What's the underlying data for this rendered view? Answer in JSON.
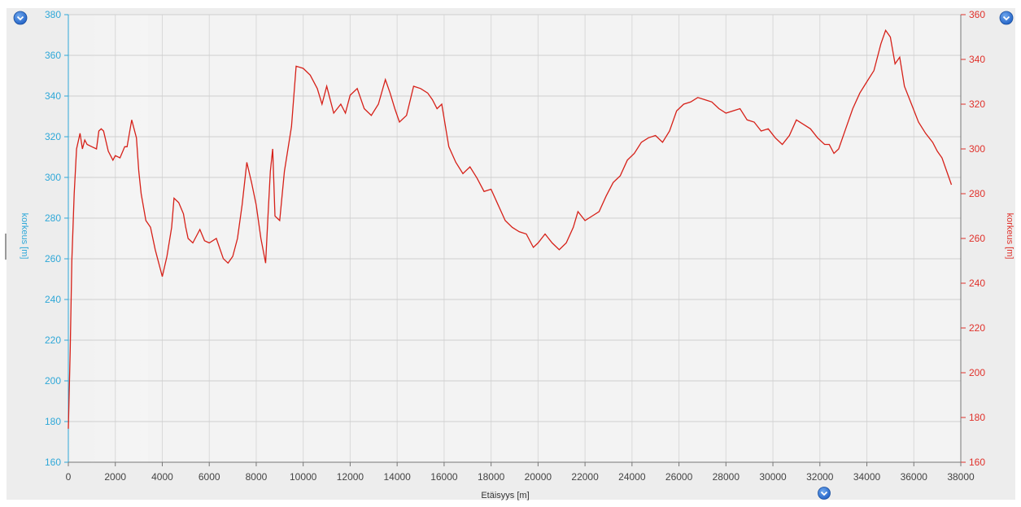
{
  "colors": {
    "left_axis": "#2fa8d8",
    "right_axis": "#e0312b",
    "series": "#d62018",
    "grid": "#d9d9d9",
    "plot_bg": "#f4f4f4",
    "panel_bg": "#ececec",
    "control": "#2a6fd0"
  },
  "controls": {
    "left_icon": "chevron-down-icon",
    "right_icon": "chevron-down-icon",
    "bottom_icon": "chevron-down-icon"
  },
  "chart_data": {
    "type": "line",
    "title": "",
    "xlabel": "Etäisyys [m]",
    "ylabel_left": "korkeus [m]",
    "ylabel_right": "korkeus [m]",
    "xlim": [
      0,
      38000
    ],
    "ylim": [
      160,
      380
    ],
    "ylim_right": [
      160,
      360
    ],
    "x_ticks": [
      "0",
      "2000",
      "4000",
      "6000",
      "8000",
      "10000",
      "12000",
      "14000",
      "16000",
      "18000",
      "20000",
      "22000",
      "24000",
      "26000",
      "28000",
      "30000",
      "32000",
      "34000",
      "36000",
      "38000"
    ],
    "y_ticks_left": [
      "160",
      "180",
      "200",
      "220",
      "240",
      "260",
      "280",
      "300",
      "320",
      "340",
      "360",
      "380"
    ],
    "y_ticks_right": [
      "160",
      "180",
      "200",
      "220",
      "240",
      "260",
      "280",
      "300",
      "320",
      "340",
      "360"
    ],
    "grid": true,
    "legend": "none",
    "series": [
      {
        "axis": "right",
        "x": [
          0,
          80,
          150,
          250,
          350,
          500,
          600,
          700,
          800,
          1000,
          1200,
          1300,
          1400,
          1500,
          1700,
          1900,
          2000,
          2200,
          2400,
          2500,
          2700,
          2900,
          3000,
          3100,
          3300,
          3500,
          3700,
          4000,
          4200,
          4400,
          4500,
          4700,
          4900,
          5000,
          5100,
          5300,
          5600,
          5800,
          6000,
          6300,
          6600,
          6800,
          7000,
          7200,
          7400,
          7600,
          7800,
          8000,
          8200,
          8400,
          8500,
          8600,
          8700,
          8800,
          9000,
          9200,
          9500,
          9700,
          10000,
          10300,
          10600,
          10800,
          11000,
          11300,
          11600,
          11800,
          12000,
          12300,
          12600,
          12900,
          13200,
          13500,
          13700,
          13900,
          14100,
          14400,
          14700,
          15000,
          15300,
          15500,
          15700,
          15900,
          16200,
          16500,
          16800,
          17100,
          17400,
          17700,
          18000,
          18300,
          18600,
          18900,
          19200,
          19500,
          19800,
          20000,
          20300,
          20600,
          20900,
          21200,
          21500,
          21700,
          22000,
          22300,
          22600,
          22900,
          23200,
          23500,
          23800,
          24100,
          24400,
          24700,
          25000,
          25300,
          25600,
          25900,
          26200,
          26500,
          26800,
          27100,
          27400,
          27700,
          28000,
          28300,
          28600,
          28900,
          29200,
          29500,
          29800,
          30100,
          30400,
          30700,
          31000,
          31300,
          31600,
          31900,
          32200,
          32400,
          32600,
          32800,
          33100,
          33400,
          33700,
          34000,
          34300,
          34600,
          34800,
          35000,
          35200,
          35400,
          35600,
          35900,
          36200,
          36500,
          36800,
          37000,
          37200,
          37400,
          37600
        ],
        "y": [
          175,
          210,
          250,
          280,
          300,
          307,
          300,
          304,
          302,
          301,
          300,
          308,
          309,
          308,
          299,
          295,
          297,
          296,
          301,
          301,
          313,
          305,
          290,
          280,
          268,
          265,
          255,
          243,
          252,
          265,
          278,
          276,
          271,
          265,
          260,
          258,
          264,
          259,
          258,
          260,
          251,
          249,
          252,
          260,
          275,
          294,
          285,
          275,
          260,
          249,
          270,
          290,
          300,
          270,
          268,
          290,
          310,
          337,
          336,
          333,
          327,
          320,
          328,
          316,
          320,
          316,
          324,
          327,
          318,
          315,
          320,
          331,
          325,
          318,
          312,
          315,
          328,
          327,
          325,
          322,
          318,
          320,
          301,
          294,
          289,
          292,
          287,
          281,
          282,
          275,
          268,
          265,
          263,
          262,
          256,
          258,
          262,
          258,
          255,
          258,
          265,
          272,
          268,
          270,
          272,
          279,
          285,
          288,
          295,
          298,
          303,
          305,
          306,
          303,
          308,
          317,
          320,
          321,
          323,
          322,
          321,
          318,
          316,
          317,
          318,
          313,
          312,
          308,
          309,
          305,
          302,
          306,
          313,
          311,
          309,
          305,
          302,
          302,
          298,
          300,
          309,
          318,
          325,
          330,
          335,
          347,
          353,
          350,
          338,
          341,
          328,
          320,
          312,
          307,
          303,
          299,
          296,
          290,
          284
        ]
      }
    ]
  }
}
